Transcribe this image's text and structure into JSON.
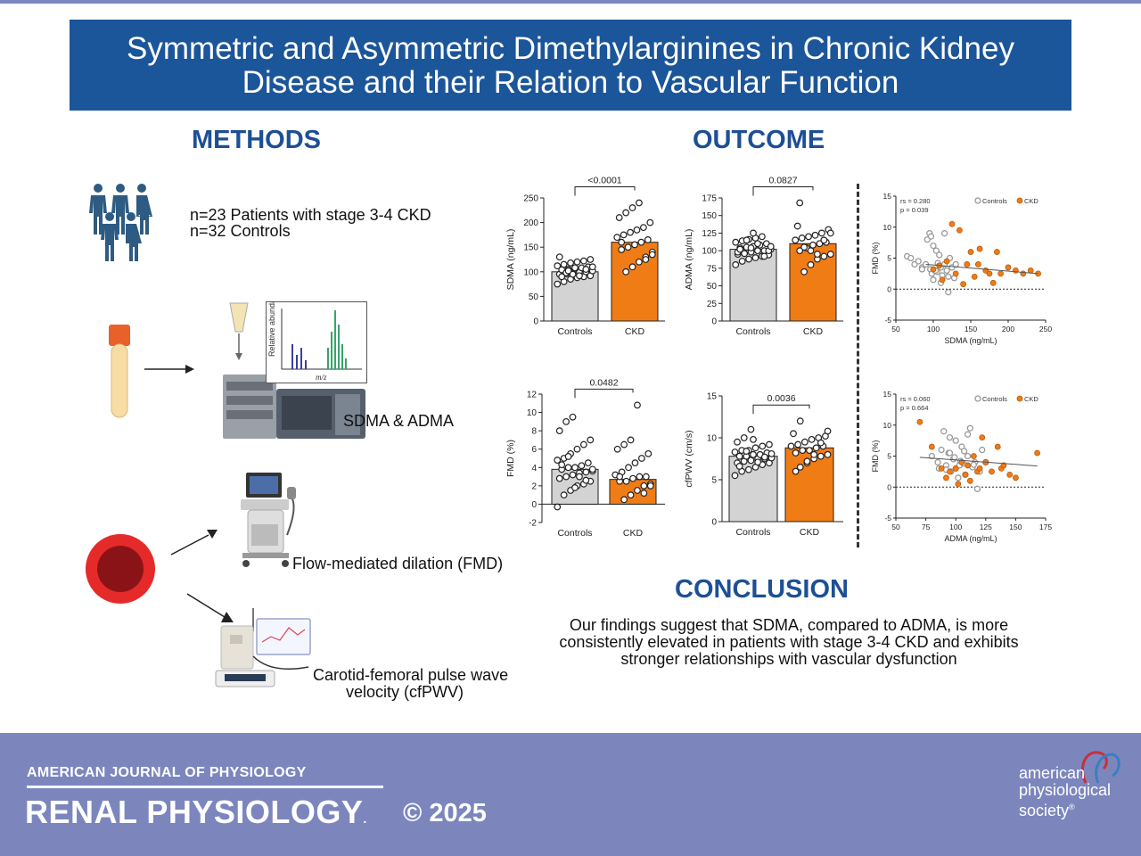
{
  "title": {
    "line1": "Symmetric and Asymmetric Dimethylarginines in Chronic Kidney",
    "line2": "Disease and their Relation to Vascular Function"
  },
  "methods": {
    "heading": "METHODS",
    "cohort_line1": "n=23 Patients with stage 3-4 CKD",
    "cohort_line2": "n=32 Controls",
    "assay_label": "SDMA & ADMA",
    "spectrum_ylabel": "Relative abundance",
    "spectrum_xlabel": "m/z",
    "fmd_label": "Flow-mediated dilation (FMD)",
    "pwv_line1": "Carotid-femoral pulse wave",
    "pwv_line2": "velocity (cfPWV)"
  },
  "outcome": {
    "heading": "OUTCOME"
  },
  "conclusion": {
    "heading": "CONCLUSION",
    "line1": "Our findings suggest that SDMA, compared to ADMA, is more",
    "line2": "consistently elevated in patients with stage 3-4 CKD and exhibits",
    "line3": "stronger relationships with vascular dysfunction"
  },
  "colors": {
    "controls": "#d3d3d3",
    "ckd": "#f07c16",
    "banner": "#1b559a",
    "footer": "#7c86bd",
    "heading": "#1d4f95"
  },
  "chart_data": [
    {
      "type": "bar",
      "categories": [
        "Controls",
        "CKD"
      ],
      "values": [
        100,
        160
      ],
      "ylabel": "SDMA (ng/mL)",
      "ylim": [
        0,
        250
      ],
      "yticks": [
        0,
        50,
        100,
        150,
        200,
        250
      ],
      "p_value": "<0.0001",
      "controls_points": [
        75,
        80,
        85,
        88,
        90,
        92,
        95,
        96,
        98,
        100,
        100,
        102,
        104,
        105,
        106,
        108,
        110,
        112,
        115,
        118,
        120,
        122,
        125,
        130,
        98,
        95,
        92,
        105,
        110,
        90,
        102,
        108
      ],
      "ckd_points": [
        100,
        110,
        120,
        130,
        140,
        145,
        150,
        155,
        160,
        165,
        170,
        175,
        180,
        185,
        190,
        200,
        210,
        220,
        230,
        240,
        125,
        135,
        160
      ]
    },
    {
      "type": "bar",
      "categories": [
        "Controls",
        "CKD"
      ],
      "values": [
        102,
        110
      ],
      "ylabel": "ADMA (ng/mL)",
      "ylim": [
        0,
        175
      ],
      "yticks": [
        0,
        25,
        50,
        75,
        100,
        125,
        150,
        175
      ],
      "p_value": "0.0827",
      "controls_points": [
        80,
        85,
        88,
        90,
        92,
        94,
        95,
        96,
        98,
        100,
        100,
        102,
        104,
        105,
        106,
        108,
        110,
        112,
        114,
        116,
        118,
        120,
        100,
        98,
        96,
        104,
        110,
        92,
        106,
        102,
        115,
        125
      ],
      "ckd_points": [
        70,
        80,
        88,
        92,
        95,
        100,
        104,
        108,
        110,
        112,
        115,
        118,
        120,
        122,
        125,
        130,
        135,
        105,
        100,
        95,
        115,
        125,
        168
      ]
    },
    {
      "type": "scatter",
      "xlabel": "SDMA (ng/mL)",
      "ylabel": "FMD (%)",
      "xlim": [
        50,
        250
      ],
      "ylim": [
        -5,
        15
      ],
      "xticks": [
        50,
        100,
        150,
        200,
        250
      ],
      "yticks": [
        -5,
        0,
        5,
        10,
        15
      ],
      "stat_r": "rs = 0.280",
      "stat_p": "p = 0.039",
      "legend": [
        "Controls",
        "CKD"
      ],
      "controls_points": [
        [
          65,
          5.3
        ],
        [
          70,
          5.0
        ],
        [
          75,
          4.0
        ],
        [
          80,
          4.5
        ],
        [
          85,
          3.5
        ],
        [
          90,
          4.0
        ],
        [
          92,
          8.0
        ],
        [
          95,
          9.0
        ],
        [
          96,
          3.2
        ],
        [
          98,
          2.5
        ],
        [
          100,
          7.0
        ],
        [
          100,
          1.5
        ],
        [
          102,
          3.0
        ],
        [
          104,
          6.2
        ],
        [
          105,
          2.8
        ],
        [
          106,
          4.2
        ],
        [
          108,
          5.5
        ],
        [
          110,
          1.0
        ],
        [
          110,
          3.5
        ],
        [
          112,
          2.2
        ],
        [
          115,
          4.0
        ],
        [
          115,
          9.0
        ],
        [
          118,
          3.0
        ],
        [
          120,
          2.0
        ],
        [
          120,
          -0.5
        ],
        [
          122,
          5.0
        ],
        [
          125,
          3.5
        ],
        [
          128,
          1.8
        ],
        [
          130,
          4.0
        ],
        [
          85,
          3.2
        ],
        [
          97,
          8.5
        ],
        [
          103,
          3.0
        ]
      ],
      "ckd_points": [
        [
          100,
          3.2
        ],
        [
          108,
          3.8
        ],
        [
          112,
          1.5
        ],
        [
          118,
          4.5
        ],
        [
          125,
          10.5
        ],
        [
          130,
          2.5
        ],
        [
          135,
          9.5
        ],
        [
          140,
          0.8
        ],
        [
          145,
          4.0
        ],
        [
          150,
          6.0
        ],
        [
          155,
          2.0
        ],
        [
          160,
          4.0
        ],
        [
          162,
          6.5
        ],
        [
          170,
          3.0
        ],
        [
          175,
          2.5
        ],
        [
          180,
          1.0
        ],
        [
          185,
          6.0
        ],
        [
          190,
          2.5
        ],
        [
          200,
          3.5
        ],
        [
          210,
          3.0
        ],
        [
          220,
          2.5
        ],
        [
          230,
          3.0
        ],
        [
          240,
          2.5
        ]
      ],
      "fit_line": [
        [
          90,
          4.0
        ],
        [
          240,
          2.5
        ]
      ]
    },
    {
      "type": "bar",
      "categories": [
        "Controls",
        "CKD"
      ],
      "values": [
        3.8,
        2.7
      ],
      "ylabel": "FMD (%)",
      "ylim": [
        -2,
        12
      ],
      "yticks": [
        -2,
        0,
        2,
        4,
        6,
        8,
        10,
        12
      ],
      "p_value": "0.0482",
      "controls_points": [
        -0.3,
        1.0,
        1.5,
        2.0,
        2.2,
        2.5,
        2.8,
        3.0,
        3.2,
        3.4,
        3.5,
        3.6,
        3.8,
        4.0,
        4.0,
        4.2,
        4.5,
        4.8,
        5.0,
        5.5,
        6.0,
        6.5,
        7.0,
        8.0,
        9.0,
        9.5,
        3.0,
        2.6,
        3.8,
        4.3,
        5.2,
        1.8
      ],
      "ckd_points": [
        0.5,
        1.0,
        1.5,
        2.0,
        2.2,
        2.5,
        2.5,
        2.8,
        3.0,
        3.0,
        3.2,
        3.5,
        4.0,
        4.5,
        5.0,
        5.5,
        6.0,
        6.5,
        7.0,
        10.8,
        1.2,
        2.0,
        3.0
      ]
    },
    {
      "type": "bar",
      "categories": [
        "Controls",
        "CKD"
      ],
      "values": [
        7.8,
        8.8
      ],
      "ylabel": "cfPWV (cm/s)",
      "ylim": [
        0,
        15
      ],
      "yticks": [
        0,
        5,
        10,
        15
      ],
      "p_value": "0.0036",
      "controls_points": [
        5.5,
        6.0,
        6.2,
        6.5,
        6.8,
        7.0,
        7.0,
        7.2,
        7.3,
        7.5,
        7.5,
        7.6,
        7.8,
        7.8,
        8.0,
        8.0,
        8.2,
        8.3,
        8.5,
        8.5,
        8.8,
        9.0,
        9.2,
        9.5,
        10.0,
        11.0,
        7.1,
        7.7,
        8.1,
        6.6,
        8.4,
        9.8
      ],
      "ckd_points": [
        6.5,
        7.0,
        7.5,
        7.8,
        8.0,
        8.2,
        8.5,
        8.5,
        8.8,
        9.0,
        9.0,
        9.2,
        9.5,
        9.8,
        10.0,
        10.2,
        10.5,
        12.0,
        7.2,
        8.0,
        9.4,
        10.8,
        6.0
      ]
    },
    {
      "type": "scatter",
      "xlabel": "ADMA (ng/mL)",
      "ylabel": "FMD (%)",
      "xlim": [
        50,
        175
      ],
      "ylim": [
        -5,
        15
      ],
      "xticks": [
        50,
        75,
        100,
        125,
        150,
        175
      ],
      "yticks": [
        -5,
        0,
        5,
        10,
        15
      ],
      "stat_r": "rs = 0.060",
      "stat_p": "p = 0.664",
      "legend": [
        "Controls",
        "CKD"
      ],
      "controls_points": [
        [
          80,
          5.0
        ],
        [
          85,
          4.0
        ],
        [
          88,
          6.0
        ],
        [
          90,
          9.0
        ],
        [
          92,
          3.5
        ],
        [
          94,
          5.5
        ],
        [
          95,
          8.0
        ],
        [
          96,
          2.5
        ],
        [
          98,
          4.5
        ],
        [
          100,
          3.0
        ],
        [
          100,
          7.5
        ],
        [
          102,
          1.5
        ],
        [
          104,
          4.2
        ],
        [
          105,
          6.5
        ],
        [
          106,
          3.8
        ],
        [
          108,
          2.0
        ],
        [
          110,
          5.0
        ],
        [
          112,
          9.5
        ],
        [
          114,
          3.2
        ],
        [
          116,
          4.0
        ],
        [
          118,
          -0.3
        ],
        [
          120,
          2.5
        ],
        [
          122,
          6.0
        ],
        [
          125,
          4.0
        ],
        [
          95,
          5.5
        ],
        [
          103,
          3.5
        ],
        [
          110,
          8.5
        ],
        [
          86,
          3.0
        ],
        [
          92,
          2.8
        ],
        [
          99,
          4.8
        ],
        [
          107,
          5.8
        ],
        [
          115,
          3.6
        ]
      ],
      "ckd_points": [
        [
          70,
          10.5
        ],
        [
          80,
          6.5
        ],
        [
          88,
          3.0
        ],
        [
          92,
          1.5
        ],
        [
          95,
          2.5
        ],
        [
          100,
          3.0
        ],
        [
          102,
          0.5
        ],
        [
          105,
          4.0
        ],
        [
          108,
          2.0
        ],
        [
          110,
          3.5
        ],
        [
          112,
          1.0
        ],
        [
          115,
          5.0
        ],
        [
          118,
          2.5
        ],
        [
          120,
          3.0
        ],
        [
          122,
          8.0
        ],
        [
          125,
          4.0
        ],
        [
          130,
          2.5
        ],
        [
          135,
          6.5
        ],
        [
          138,
          3.0
        ],
        [
          140,
          3.5
        ],
        [
          145,
          2.0
        ],
        [
          150,
          1.5
        ],
        [
          168,
          5.5
        ]
      ],
      "fit_line": [
        [
          70,
          4.8
        ],
        [
          168,
          3.4
        ]
      ]
    }
  ]
}
